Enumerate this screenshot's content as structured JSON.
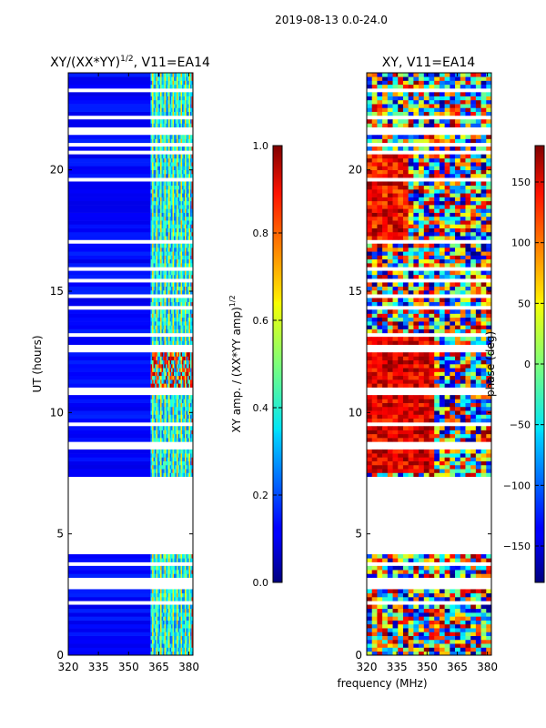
{
  "figure": {
    "suptitle": "2019-08-13 0.0-24.0",
    "xlabel": "frequency (MHz)"
  },
  "chart_data": [
    {
      "type": "heatmap",
      "title": "XY/(XX*YY)",
      "title_exponent": "1/2",
      "title_suffix": ", V11=EA14",
      "xlabel": "",
      "ylabel": "UT (hours)",
      "xlim": [
        320,
        382
      ],
      "ylim": [
        0,
        24
      ],
      "xticks": [
        "320",
        "335",
        "350",
        "365",
        "380"
      ],
      "xtick_values": [
        320,
        335,
        350,
        365,
        380
      ],
      "yticks": [
        "0",
        "5",
        "10",
        "15",
        "20"
      ],
      "ytick_values": [
        0,
        5,
        10,
        15,
        20
      ],
      "no_data_ranges_hours": [
        [
          4.3,
          7.3
        ]
      ],
      "colormap": "jet",
      "colorbar": {
        "label": "XY amp. / (XX*YY amp)",
        "label_exponent": "1/2",
        "range": [
          0.0,
          1.0
        ],
        "ticks": [
          "0.0",
          "0.2",
          "0.4",
          "0.6",
          "0.8",
          "1.0"
        ],
        "tick_values": [
          0.0,
          0.2,
          0.4,
          0.6,
          0.8,
          1.0
        ]
      }
    },
    {
      "type": "heatmap",
      "title": "XY, V11=EA14",
      "xlabel": "",
      "ylabel": "",
      "xlim": [
        320,
        382
      ],
      "ylim": [
        0,
        24
      ],
      "xticks": [
        "320",
        "335",
        "350",
        "365",
        "380"
      ],
      "xtick_values": [
        320,
        335,
        350,
        365,
        380
      ],
      "yticks": [
        "0",
        "5",
        "10",
        "15",
        "20"
      ],
      "ytick_values": [
        0,
        5,
        10,
        15,
        20
      ],
      "no_data_ranges_hours": [
        [
          4.3,
          7.3
        ]
      ],
      "colormap": "jet",
      "colorbar": {
        "label": "phase (deg)",
        "range": [
          -180,
          180
        ],
        "ticks": [
          "−150",
          "−100",
          "−50",
          "0",
          "50",
          "100",
          "150"
        ],
        "tick_values": [
          -150,
          -100,
          -50,
          0,
          50,
          100,
          150
        ]
      }
    }
  ]
}
